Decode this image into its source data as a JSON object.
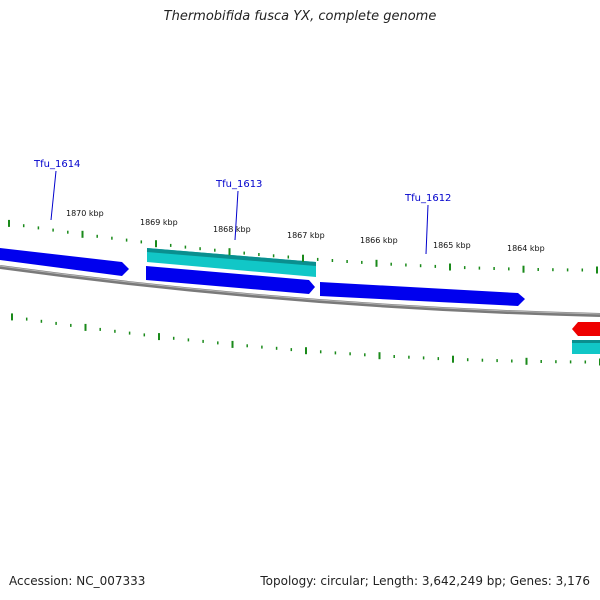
{
  "title": "Thermobifida fusca YX, complete genome",
  "footer": {
    "accession": "Accession: NC_007333",
    "summary": "Topology: circular; Length: 3,642,249 bp; Genes: 3,176"
  },
  "colors": {
    "forward_gene": "#0000ee",
    "forward_gene_highlight": "#2b2bff",
    "cds_cyan": "#11c7c7",
    "cds_cyan_dark": "#0a8f8f",
    "reverse_gene": "#ee0000",
    "backbone": "#808080",
    "tick": "#1a8a1a",
    "label_line": "#0000cc"
  },
  "scale_labels": [
    "1870 kbp",
    "1869 kbp",
    "1868 kbp",
    "1867 kbp",
    "1866 kbp",
    "1865 kbp",
    "1864 kbp"
  ],
  "genes": [
    {
      "name": "Tfu_1614"
    },
    {
      "name": "Tfu_1613"
    },
    {
      "name": "Tfu_1612"
    }
  ]
}
